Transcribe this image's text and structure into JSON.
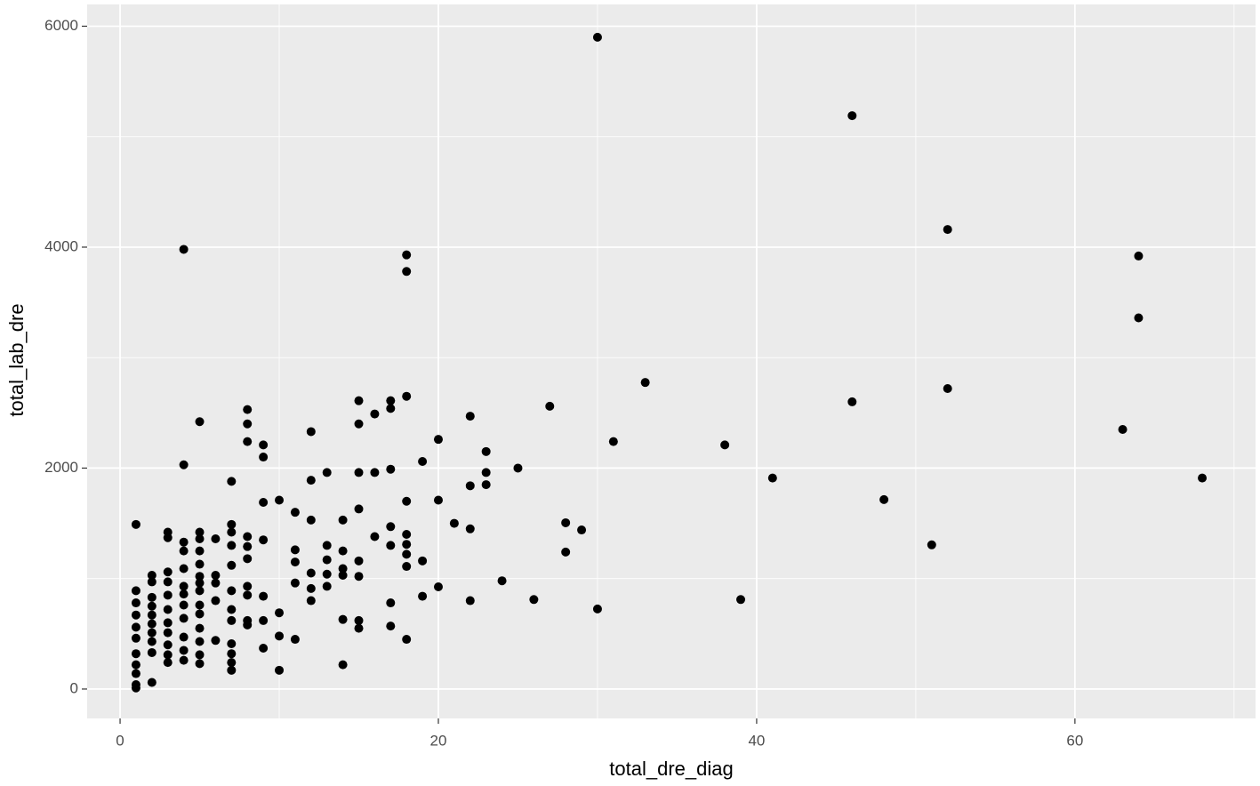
{
  "chart_data": {
    "type": "scatter",
    "x_label": "total_dre_diag",
    "y_label": "total_lab_dre",
    "xlim": [
      -2.07,
      71.35
    ],
    "ylim": [
      -266,
      6197
    ],
    "xticks": [
      0,
      20,
      40,
      60
    ],
    "yticks": [
      0,
      2000,
      4000,
      6000
    ],
    "x_minor_ticks": [
      10,
      30,
      50,
      70
    ],
    "y_minor_ticks": [
      1000,
      3000,
      5000
    ],
    "grid": true,
    "color": "#000000",
    "panel_color": "#ebebeb",
    "x": [
      30,
      46,
      52,
      64,
      64,
      63,
      68,
      52,
      46,
      48,
      51,
      41,
      39,
      38,
      33,
      31,
      30,
      29,
      28,
      28,
      27,
      26,
      25,
      24,
      23,
      23,
      23,
      22,
      22,
      22,
      22,
      21,
      20,
      20,
      20,
      19,
      19,
      19,
      18,
      18,
      18,
      18,
      18,
      18,
      18,
      18,
      18,
      17,
      17,
      17,
      17,
      17,
      17,
      17,
      16,
      16,
      16,
      15,
      15,
      15,
      15,
      15,
      15,
      15,
      15,
      14,
      14,
      14,
      14,
      14,
      14,
      13,
      13,
      13,
      13,
      13,
      12,
      12,
      12,
      12,
      12,
      12,
      11,
      11,
      11,
      11,
      11,
      10,
      10,
      10,
      10,
      9,
      9,
      9,
      9,
      9,
      9,
      9,
      8,
      8,
      8,
      8,
      8,
      8,
      8,
      8,
      8,
      8,
      7,
      7,
      7,
      7,
      7,
      7,
      7,
      7,
      7,
      7,
      7,
      7,
      6,
      6,
      6,
      6,
      6,
      5,
      5,
      5,
      5,
      5,
      5,
      5,
      5,
      5,
      5,
      5,
      5,
      5,
      5,
      4,
      4,
      4,
      4,
      4,
      4,
      4,
      4,
      4,
      4,
      4,
      4,
      3,
      3,
      3,
      3,
      3,
      3,
      3,
      3,
      3,
      3,
      3,
      2,
      2,
      2,
      2,
      2,
      2,
      2,
      2,
      2,
      2,
      1,
      1,
      1,
      1,
      1,
      1,
      1,
      1,
      1,
      1,
      1
    ],
    "values": [
      5900,
      5190,
      4160,
      3920,
      3360,
      2350,
      1910,
      2720,
      2600,
      1715,
      1305,
      1910,
      810,
      2210,
      2775,
      2240,
      725,
      1440,
      1505,
      1240,
      2560,
      810,
      2000,
      980,
      2150,
      1960,
      1850,
      2470,
      1840,
      1450,
      800,
      1500,
      2260,
      1710,
      925,
      2060,
      1160,
      840,
      3930,
      3780,
      2650,
      1700,
      1400,
      1310,
      1220,
      1110,
      450,
      2610,
      2540,
      1990,
      1470,
      1300,
      780,
      570,
      2490,
      1960,
      1380,
      2610,
      2400,
      1960,
      1630,
      1160,
      1020,
      620,
      550,
      1530,
      1250,
      1090,
      1030,
      630,
      220,
      1960,
      1300,
      1170,
      1040,
      930,
      2330,
      1890,
      1530,
      1050,
      910,
      800,
      1600,
      1260,
      1150,
      960,
      450,
      1710,
      690,
      480,
      170,
      2210,
      2100,
      1690,
      1350,
      840,
      620,
      370,
      2530,
      2400,
      2240,
      1380,
      1290,
      1180,
      930,
      850,
      620,
      580,
      1880,
      1490,
      1420,
      1300,
      1120,
      890,
      720,
      620,
      410,
      320,
      240,
      170,
      1360,
      1030,
      960,
      800,
      440,
      2420,
      1420,
      1360,
      1250,
      1130,
      1020,
      960,
      890,
      760,
      680,
      550,
      430,
      310,
      230,
      3980,
      2030,
      1330,
      1250,
      1090,
      930,
      860,
      760,
      640,
      470,
      350,
      260,
      1420,
      1370,
      1060,
      970,
      850,
      720,
      600,
      510,
      400,
      310,
      240,
      1030,
      970,
      830,
      750,
      670,
      590,
      510,
      430,
      330,
      60,
      1490,
      890,
      780,
      670,
      560,
      460,
      320,
      220,
      140,
      40,
      10
    ]
  }
}
